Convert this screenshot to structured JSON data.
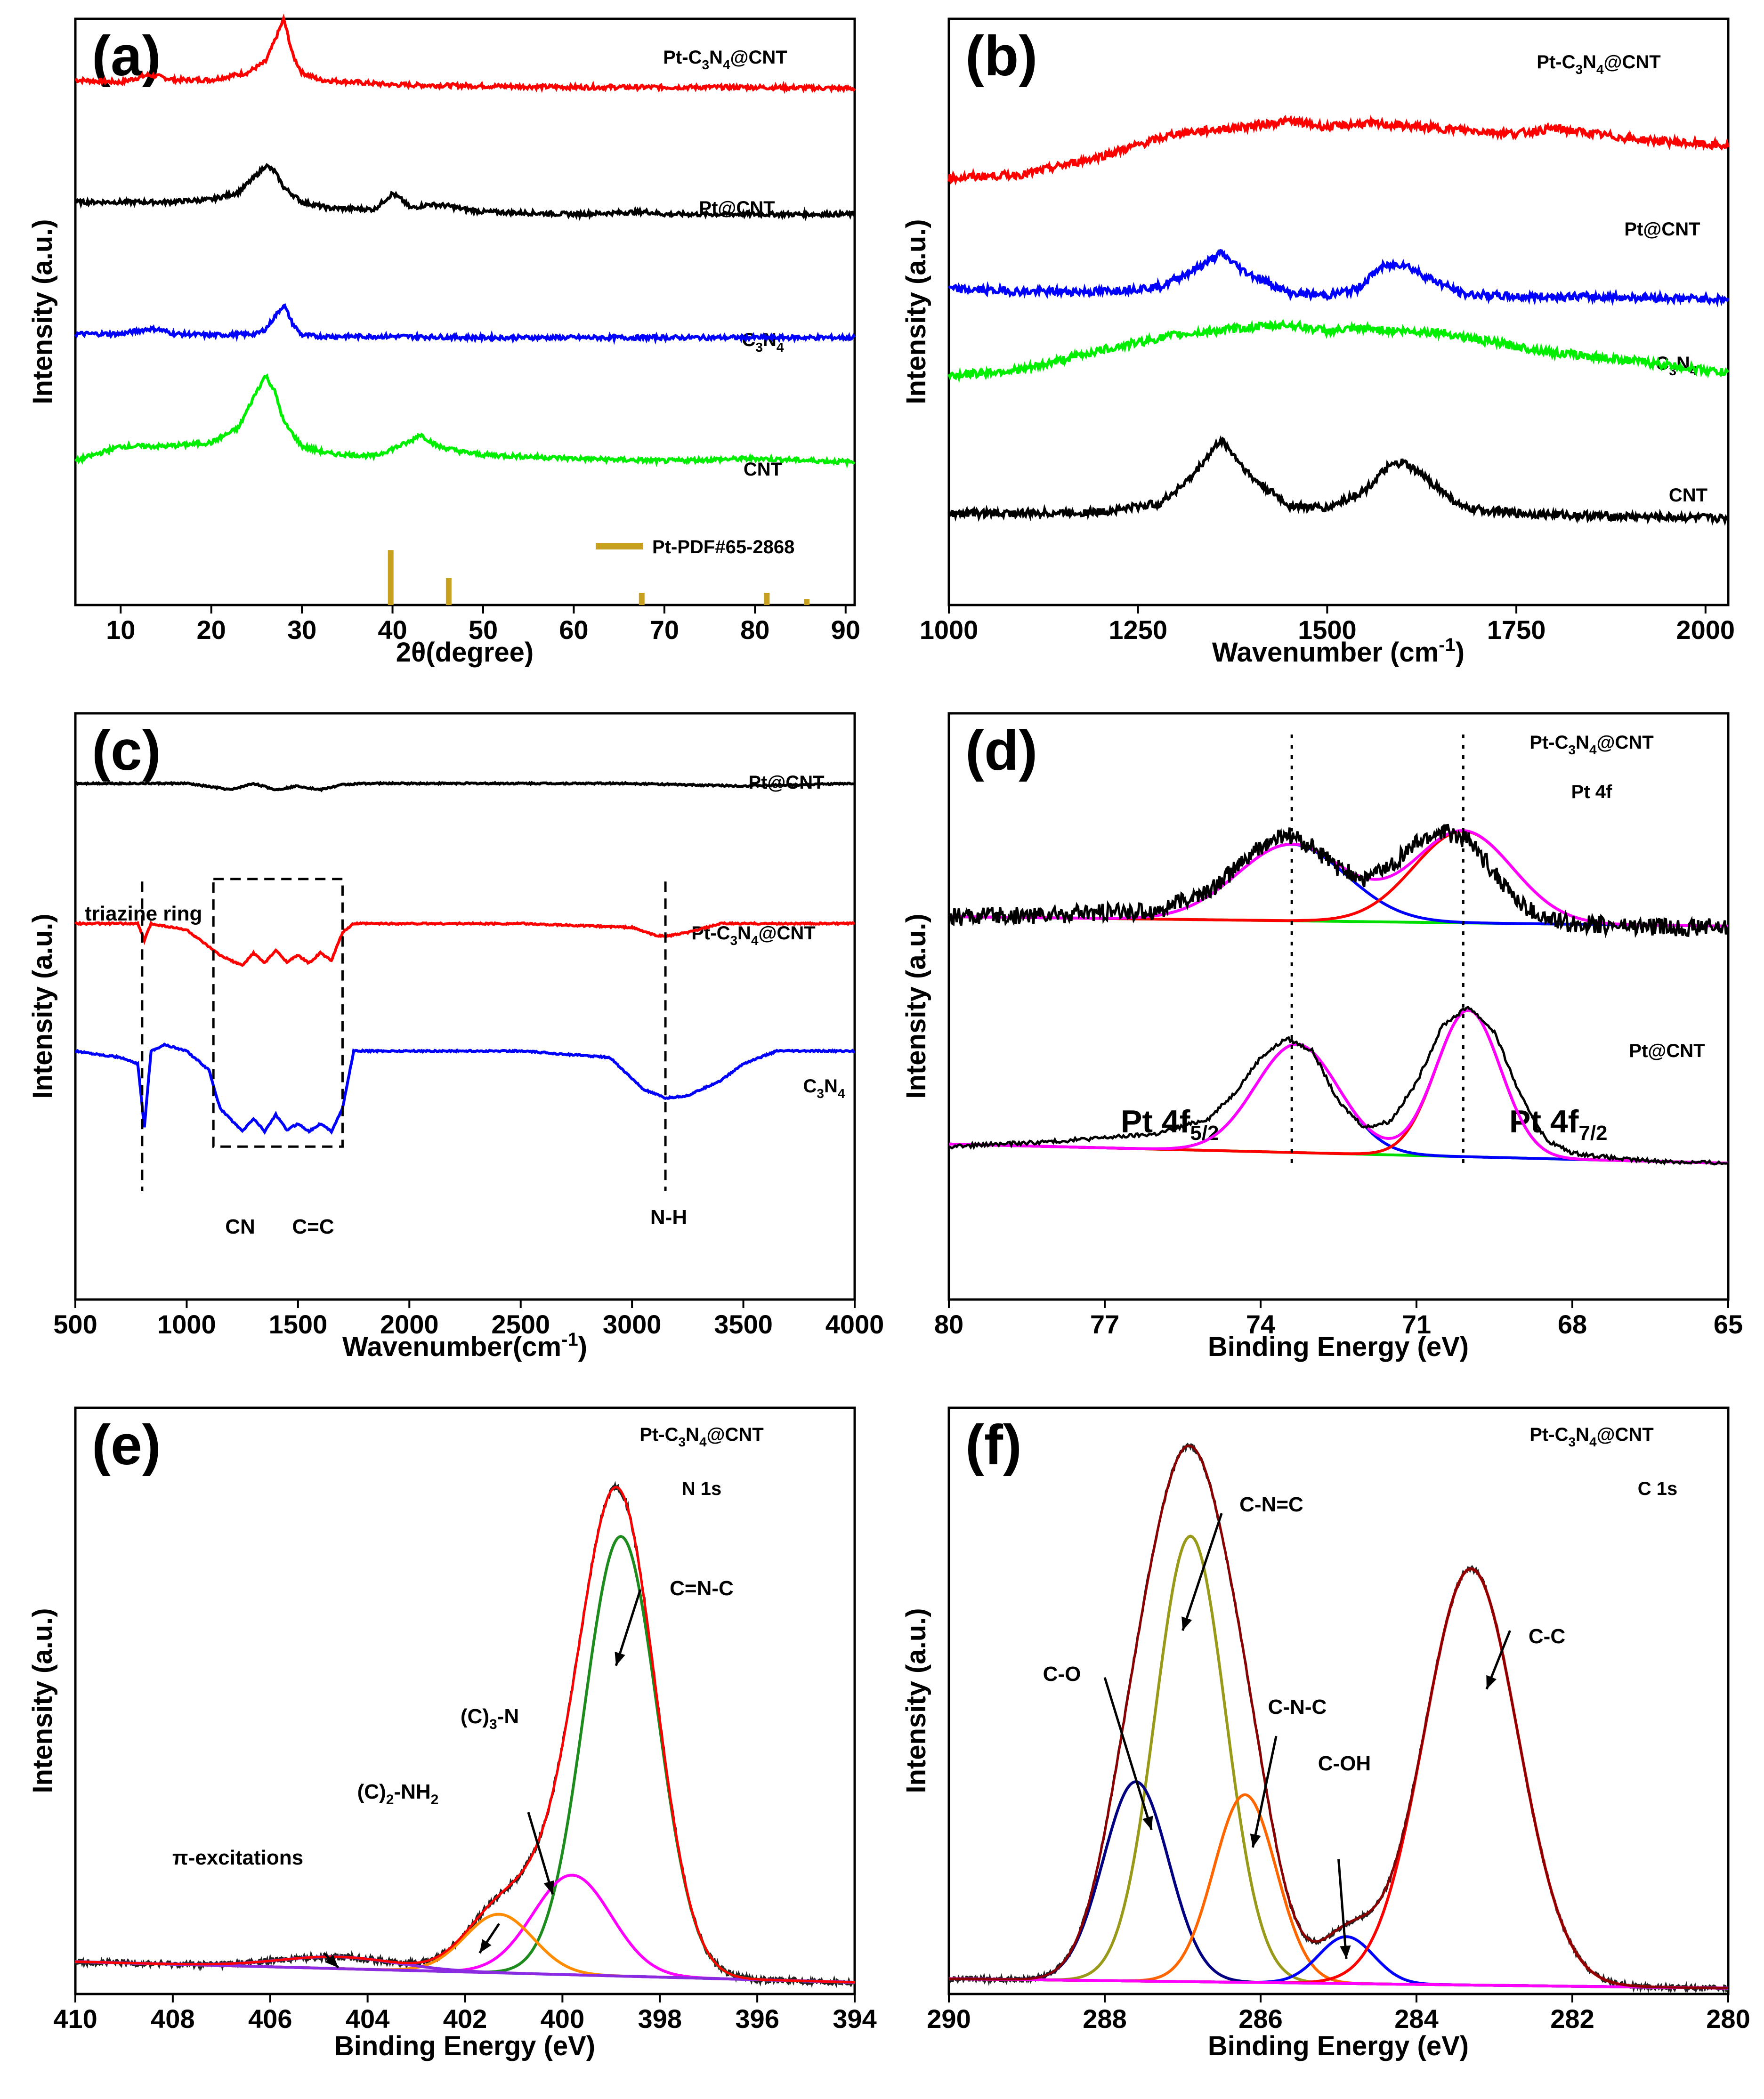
{
  "chart_data": [
    {
      "panel": "(a)",
      "type": "line",
      "xlabel": "2θ(degree)",
      "ylabel": "Intensity (a.u.)",
      "xlim": [
        5,
        91
      ],
      "ylim": [
        0,
        4.8
      ],
      "xticks": [
        "10",
        "20",
        "30",
        "40",
        "50",
        "60",
        "70",
        "80",
        "90"
      ],
      "series": [
        {
          "name": "Pt-C3N4@CNT",
          "label_main": "Pt-C",
          "sub1": "3",
          "mid": "N",
          "sub2": "4",
          "tail": "@CNT",
          "color": "#ff0000",
          "x": [
            5,
            10,
            13,
            14,
            16,
            20,
            24,
            26,
            27,
            28,
            29,
            30,
            32,
            36,
            40,
            50,
            60,
            70,
            80,
            91
          ],
          "y": [
            4.3,
            4.28,
            4.34,
            4.33,
            4.3,
            4.3,
            4.36,
            4.45,
            4.62,
            4.8,
            4.5,
            4.36,
            4.3,
            4.28,
            4.26,
            4.25,
            4.24,
            4.24,
            4.24,
            4.23
          ]
        },
        {
          "name": "Pt@CNT",
          "label_main": "Pt@CNT",
          "x": [
            5,
            10,
            15,
            20,
            23,
            25,
            26,
            27,
            28,
            30,
            33,
            38,
            40,
            41,
            42,
            44,
            46,
            48,
            50,
            60,
            68,
            70,
            80,
            91
          ],
          "y": [
            3.3,
            3.3,
            3.3,
            3.32,
            3.38,
            3.52,
            3.6,
            3.55,
            3.42,
            3.3,
            3.25,
            3.24,
            3.37,
            3.32,
            3.25,
            3.28,
            3.27,
            3.24,
            3.22,
            3.2,
            3.22,
            3.2,
            3.2,
            3.2
          ]
        },
        {
          "name": "C3N4",
          "label_main": "C",
          "sub1": "3",
          "mid": "N",
          "sub2": "4",
          "x": [
            5,
            10,
            13,
            14,
            16,
            20,
            25,
            26,
            27,
            28,
            29,
            30,
            32,
            36,
            40,
            50,
            60,
            70,
            80,
            91
          ],
          "y": [
            2.22,
            2.22,
            2.26,
            2.26,
            2.22,
            2.21,
            2.22,
            2.26,
            2.36,
            2.46,
            2.3,
            2.21,
            2.2,
            2.2,
            2.2,
            2.19,
            2.19,
            2.19,
            2.19,
            2.19
          ]
        },
        {
          "name": "CNT",
          "label_main": "CNT",
          "x": [
            5,
            10,
            15,
            20,
            23,
            25,
            26,
            27,
            28,
            30,
            33,
            38,
            42,
            43,
            45,
            48,
            50,
            60,
            70,
            80,
            91
          ],
          "y": [
            1.18,
            1.3,
            1.3,
            1.33,
            1.45,
            1.75,
            1.88,
            1.75,
            1.5,
            1.3,
            1.24,
            1.22,
            1.34,
            1.4,
            1.3,
            1.25,
            1.23,
            1.2,
            1.18,
            1.2,
            1.17
          ]
        }
      ],
      "reference": {
        "name": "Pt-PDF#65-2868",
        "color": "#c8a020",
        "positions": [
          39.8,
          46.2,
          67.5,
          81.3,
          85.7
        ],
        "heights": [
          0.45,
          0.22,
          0.1,
          0.1,
          0.05
        ]
      }
    },
    {
      "panel": "(b)",
      "type": "line",
      "xlabel": "Wavenumber (cm",
      "xlabel_sup": "-1",
      "xlabel_close": ")",
      "ylabel": "Intensity (a.u.)",
      "xlim": [
        1000,
        2030
      ],
      "ylim": [
        0,
        4.6
      ],
      "xticks": [
        "1000",
        "1250",
        "1500",
        "1750",
        "2000"
      ],
      "series": [
        {
          "name": "Pt-C3N4@CNT",
          "label_main": "Pt-C",
          "sub1": "3",
          "mid": "N",
          "sub2": "4",
          "tail": "@CNT",
          "color": "#ff0000",
          "x": [
            1000,
            1100,
            1200,
            1300,
            1400,
            1450,
            1500,
            1550,
            1600,
            1700,
            1750,
            1800,
            1900,
            2030
          ],
          "y": [
            3.35,
            3.38,
            3.52,
            3.7,
            3.76,
            3.8,
            3.75,
            3.78,
            3.76,
            3.72,
            3.7,
            3.74,
            3.66,
            3.6
          ]
        },
        {
          "name": "Pt@CNT",
          "label_main": "Pt@CNT",
          "color": "#0000ff",
          "x": [
            1000,
            1100,
            1200,
            1280,
            1330,
            1360,
            1390,
            1450,
            1500,
            1540,
            1570,
            1600,
            1630,
            1680,
            1750,
            1850,
            2030
          ],
          "y": [
            2.48,
            2.46,
            2.46,
            2.5,
            2.65,
            2.76,
            2.62,
            2.45,
            2.43,
            2.48,
            2.65,
            2.68,
            2.58,
            2.44,
            2.42,
            2.42,
            2.4
          ]
        },
        {
          "name": "C3N4",
          "label_main": "C",
          "sub1": "3",
          "mid": "N",
          "sub2": "4",
          "color": "#00ee00",
          "x": [
            1000,
            1100,
            1200,
            1300,
            1400,
            1450,
            1500,
            1550,
            1600,
            1650,
            1700,
            1800,
            1900,
            2030
          ],
          "y": [
            1.8,
            1.85,
            2.0,
            2.12,
            2.18,
            2.2,
            2.15,
            2.17,
            2.15,
            2.14,
            2.08,
            1.98,
            1.92,
            1.82
          ]
        },
        {
          "name": "CNT",
          "label_main": "CNT",
          "color": "#000000",
          "x": [
            1000,
            1100,
            1200,
            1280,
            1320,
            1360,
            1400,
            1450,
            1500,
            1550,
            1580,
            1600,
            1630,
            1680,
            1750,
            1850,
            2030
          ],
          "y": [
            0.72,
            0.72,
            0.73,
            0.8,
            1.0,
            1.3,
            1.0,
            0.78,
            0.76,
            0.9,
            1.08,
            1.12,
            1.0,
            0.76,
            0.72,
            0.7,
            0.68
          ]
        }
      ]
    },
    {
      "panel": "(c)",
      "type": "line",
      "xlabel": "Wavenumber(cm",
      "xlabel_sup": "-1",
      "xlabel_close": ")",
      "ylabel": "Intensity (a.u.)",
      "xlim": [
        500,
        4000
      ],
      "ylim": [
        0,
        4.6
      ],
      "xticks": [
        "500",
        "1000",
        "1500",
        "2000",
        "2500",
        "3000",
        "3500",
        "4000"
      ],
      "series": [
        {
          "name": "Pt@CNT",
          "label_main": "Pt@CNT",
          "color": "#000000",
          "x": [
            500,
            1000,
            1200,
            1300,
            1400,
            1500,
            1600,
            1700,
            1800,
            2500,
            3000,
            3200,
            3500,
            4000
          ],
          "y": [
            4.05,
            4.05,
            4.0,
            4.05,
            4.0,
            4.03,
            4.0,
            4.04,
            4.05,
            4.05,
            4.05,
            4.04,
            4.03,
            4.05
          ]
        },
        {
          "name": "Pt-C3N4@CNT",
          "label_main": "Pt-C",
          "sub1": "3",
          "mid": "N",
          "sub2": "4",
          "tail": "@CNT",
          "color": "#ff0000",
          "x": [
            500,
            780,
            810,
            840,
            1000,
            1150,
            1250,
            1300,
            1350,
            1400,
            1450,
            1500,
            1550,
            1600,
            1650,
            1700,
            1750,
            2500,
            3000,
            3100,
            3150,
            3250,
            3400,
            4000
          ],
          "y": [
            2.95,
            2.95,
            2.82,
            2.95,
            2.9,
            2.7,
            2.62,
            2.72,
            2.64,
            2.74,
            2.65,
            2.7,
            2.64,
            2.72,
            2.66,
            2.88,
            2.95,
            2.95,
            2.92,
            2.86,
            2.85,
            2.88,
            2.95,
            2.95
          ]
        },
        {
          "name": "C3N4",
          "label_main": "C",
          "sub1": "3",
          "mid": "N",
          "sub2": "4",
          "color": "#0000ff",
          "x": [
            500,
            700,
            780,
            810,
            840,
            900,
            1000,
            1100,
            1150,
            1250,
            1300,
            1350,
            1400,
            1450,
            1500,
            1550,
            1600,
            1650,
            1700,
            1750,
            2500,
            2900,
            3050,
            3150,
            3250,
            3400,
            3500,
            3650,
            4000
          ],
          "y": [
            1.95,
            1.9,
            1.85,
            1.35,
            1.95,
            2.0,
            1.95,
            1.8,
            1.5,
            1.32,
            1.42,
            1.32,
            1.45,
            1.33,
            1.38,
            1.32,
            1.38,
            1.32,
            1.5,
            1.95,
            1.95,
            1.9,
            1.65,
            1.58,
            1.6,
            1.72,
            1.85,
            1.95,
            1.95
          ]
        }
      ],
      "annotations": [
        "triazine ring",
        "CN",
        "C=C",
        "N-H"
      ]
    },
    {
      "panel": "(d)",
      "type": "line",
      "xlabel": "Binding Energy (eV)",
      "ylabel": "Intensity (a.u.)",
      "xlim": [
        80,
        65
      ],
      "ylim": [
        0,
        4.6
      ],
      "xticks": [
        "80",
        "77",
        "74",
        "71",
        "68",
        "65"
      ],
      "series_labels": {
        "top": "Pt 4f",
        "bottom": "Pt@CNT"
      },
      "peaks": [
        {
          "label": "Pt 4f",
          "sub": "5/2",
          "position_eV": 73.4
        },
        {
          "label": "Pt 4f",
          "sub": "7/2",
          "position_eV": 70.1
        }
      ],
      "series": [
        {
          "name": "Pt-C3N4@CNT raw",
          "color": "#000000",
          "x": [
            80,
            78,
            76,
            75,
            74,
            73.5,
            73,
            72.5,
            72,
            71.5,
            71,
            70.5,
            70,
            69.5,
            69,
            68.5,
            68,
            67,
            66,
            65
          ],
          "y": [
            3.0,
            3.02,
            3.05,
            3.2,
            3.55,
            3.65,
            3.55,
            3.38,
            3.3,
            3.4,
            3.58,
            3.68,
            3.6,
            3.35,
            3.1,
            2.98,
            2.95,
            2.93,
            2.92,
            2.92
          ]
        },
        {
          "name": "Pt@CNT raw",
          "color": "#000000",
          "x": [
            80,
            78,
            76,
            75,
            74.5,
            74,
            73.5,
            73,
            72.5,
            72,
            71.5,
            71,
            70.5,
            70,
            69.5,
            69,
            68.5,
            68,
            67,
            66,
            65
          ],
          "y": [
            1.2,
            1.24,
            1.3,
            1.42,
            1.62,
            1.9,
            2.05,
            1.95,
            1.55,
            1.35,
            1.4,
            1.7,
            2.15,
            2.3,
            2.1,
            1.6,
            1.25,
            1.15,
            1.1,
            1.08,
            1.07
          ]
        }
      ]
    },
    {
      "panel": "(e)",
      "type": "line",
      "title_label": "Pt-C3N4@CNT",
      "label_main": "Pt-C",
      "sub1": "3",
      "mid": "N",
      "sub2": "4",
      "tail": "@CNT",
      "region": "N 1s",
      "xlabel": "Binding Energy (eV)",
      "ylabel": "Intensity (a.u.)",
      "xlim": [
        410,
        394
      ],
      "ylim": [
        0,
        100
      ],
      "xticks": [
        "410",
        "408",
        "406",
        "404",
        "402",
        "400",
        "398",
        "396",
        "394"
      ],
      "components": [
        {
          "name": "C=N-C",
          "center": 398.8,
          "height": 75,
          "width": 0.75,
          "color": "#1e8b1e"
        },
        {
          "name": "(C)3-N",
          "center": 399.8,
          "height": 17,
          "width": 0.8,
          "color": "#ff00ff"
        },
        {
          "name": "(C)2-NH2",
          "center": 401.3,
          "height": 10,
          "width": 0.7,
          "color": "#ff8c00"
        },
        {
          "name": "π-excitations",
          "center": 404.6,
          "height": 2,
          "width": 1.2,
          "color": "#8a2be2"
        }
      ],
      "annotations": [
        "C=N-C",
        "(C)3-N",
        "(C)2-NH2",
        "π-excitations"
      ]
    },
    {
      "panel": "(f)",
      "type": "line",
      "title_label": "Pt-C3N4@CNT",
      "label_main": "Pt-C",
      "sub1": "3",
      "mid": "N",
      "sub2": "4",
      "tail": "@CNT",
      "region": "C 1s",
      "xlabel": "Binding Energy (eV)",
      "ylabel": "Intensity (a.u.)",
      "xlim": [
        290,
        280
      ],
      "ylim": [
        0,
        100
      ],
      "xticks": [
        "290",
        "288",
        "286",
        "284",
        "282",
        "280"
      ],
      "components": [
        {
          "name": "C-N=C",
          "center": 286.9,
          "height": 76,
          "width": 0.45,
          "color": "#9a9a1a"
        },
        {
          "name": "C-O",
          "center": 287.6,
          "height": 34,
          "width": 0.42,
          "color": "#000080"
        },
        {
          "name": "C-N-C",
          "center": 286.2,
          "height": 32,
          "width": 0.4,
          "color": "#ff6600"
        },
        {
          "name": "C-OH",
          "center": 284.9,
          "height": 8,
          "width": 0.35,
          "color": "#0000ff"
        },
        {
          "name": "C-C",
          "center": 283.3,
          "height": 71,
          "width": 0.6,
          "color": "#ff0000"
        }
      ],
      "annotations": [
        "C-O",
        "C-N=C",
        "C-N-C",
        "C-OH",
        "C-C"
      ]
    }
  ]
}
